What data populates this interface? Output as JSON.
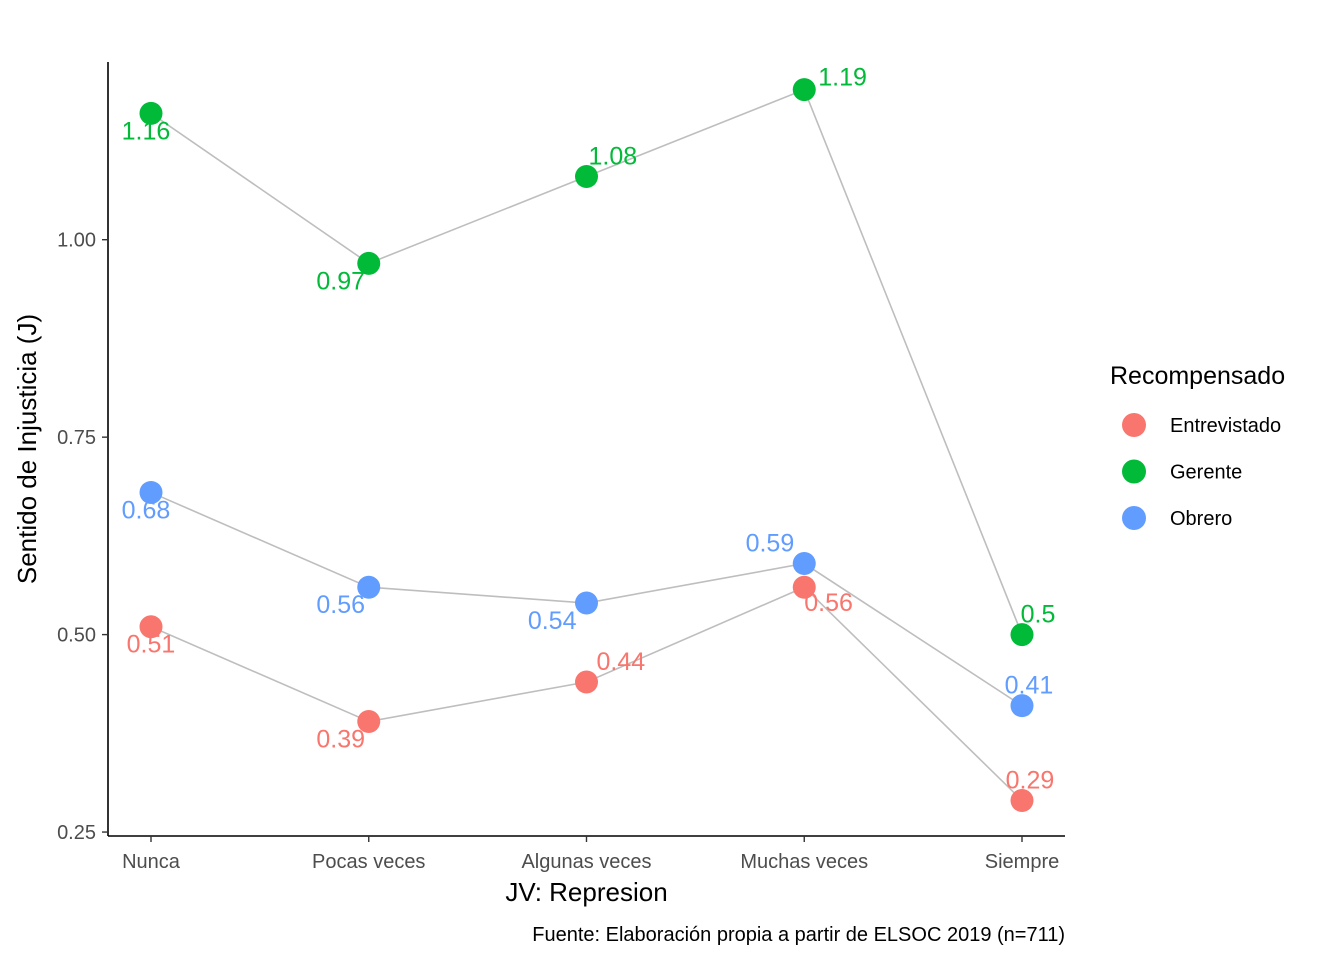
{
  "chart_data": {
    "type": "line",
    "categories": [
      "Nunca",
      "Pocas veces",
      "Algunas veces",
      "Muchas veces",
      "Siempre"
    ],
    "series": [
      {
        "name": "Entrevistado",
        "color": "#F8766D",
        "values": [
          0.51,
          0.39,
          0.44,
          0.56,
          0.29
        ],
        "labels": [
          "0.51",
          "0.39",
          "0.44",
          "0.56",
          "0.29"
        ]
      },
      {
        "name": "Gerente",
        "color": "#00BA38",
        "values": [
          1.16,
          0.97,
          1.08,
          1.19,
          0.5
        ],
        "labels": [
          "1.16",
          "0.97",
          "1.08",
          "1.19",
          "0.5"
        ]
      },
      {
        "name": "Obrero",
        "color": "#619CFF",
        "values": [
          0.68,
          0.56,
          0.54,
          0.59,
          0.41
        ],
        "labels": [
          "0.68",
          "0.56",
          "0.54",
          "0.59",
          "0.41"
        ]
      }
    ],
    "line_color": "#BEBEBE",
    "xlabel": "JV: Represion",
    "ylabel": "Sentido de Injusticia (J)",
    "ylim": [
      0.245,
      1.225
    ],
    "yticks": [
      0.25,
      0.5,
      0.75,
      1.0
    ],
    "ytick_labels": [
      "0.25",
      "0.50",
      "0.75",
      "1.00"
    ],
    "legend_title": "Recompensado",
    "legend_position": "right",
    "caption": "Fuente: Elaboración propia  a partir de ELSOC 2019 (n=711)",
    "grid": false
  }
}
